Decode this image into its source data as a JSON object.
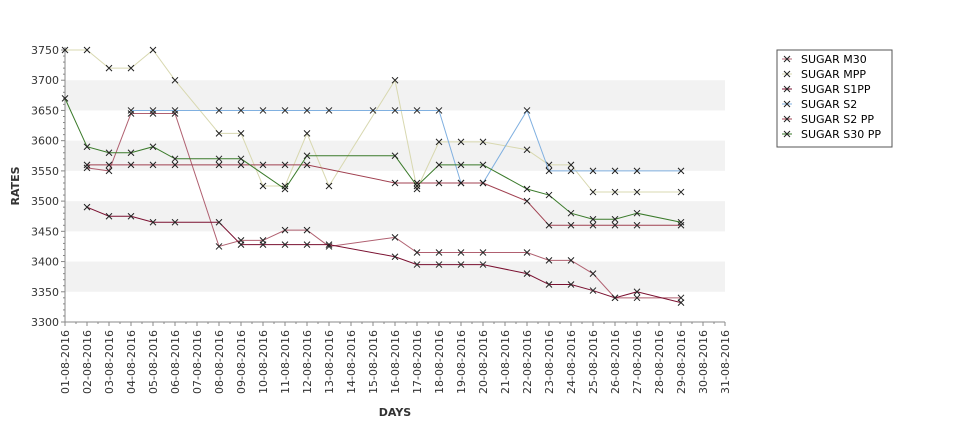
{
  "chart_data": {
    "type": "line",
    "title": "",
    "xlabel": "DAYS",
    "ylabel": "RATES",
    "ylim": [
      3300,
      3750
    ],
    "yticks": [
      3300,
      3350,
      3400,
      3450,
      3500,
      3550,
      3600,
      3650,
      3700,
      3750
    ],
    "categories": [
      "01-08-2016",
      "02-08-2016",
      "03-08-2016",
      "04-08-2016",
      "05-08-2016",
      "06-08-2016",
      "07-08-2016",
      "08-08-2016",
      "09-08-2016",
      "10-08-2016",
      "11-08-2016",
      "12-08-2016",
      "13-08-2016",
      "14-08-2016",
      "15-08-2016",
      "16-08-2016",
      "17-08-2016",
      "18-08-2016",
      "19-08-2016",
      "20-08-2016",
      "21-08-2016",
      "22-08-2016",
      "23-08-2016",
      "24-08-2016",
      "25-08-2016",
      "26-08-2016",
      "27-08-2016",
      "28-08-2016",
      "29-08-2016",
      "30-08-2016",
      "31-08-2016"
    ],
    "grid": "alternating horizontal bands",
    "legend_position": "right",
    "series": [
      {
        "name": "SUGAR M30",
        "color": "#b06070",
        "points": [
          [
            "02-08-2016",
            3555
          ],
          [
            "03-08-2016",
            3550
          ],
          [
            "04-08-2016",
            3645
          ],
          [
            "05-08-2016",
            3645
          ],
          [
            "06-08-2016",
            3645
          ],
          [
            "08-08-2016",
            3425
          ],
          [
            "09-08-2016",
            3435
          ],
          [
            "10-08-2016",
            3435
          ],
          [
            "11-08-2016",
            3452
          ],
          [
            "12-08-2016",
            3452
          ],
          [
            "13-08-2016",
            3425
          ],
          [
            "16-08-2016",
            3440
          ],
          [
            "17-08-2016",
            3415
          ],
          [
            "18-08-2016",
            3415
          ],
          [
            "19-08-2016",
            3415
          ],
          [
            "20-08-2016",
            3415
          ],
          [
            "22-08-2016",
            3415
          ],
          [
            "23-08-2016",
            3402
          ],
          [
            "24-08-2016",
            3402
          ],
          [
            "25-08-2016",
            3380
          ],
          [
            "26-08-2016",
            3340
          ],
          [
            "27-08-2016",
            3340
          ],
          [
            "29-08-2016",
            3340
          ]
        ]
      },
      {
        "name": "SUGAR MPP",
        "color": "#d8d8b0",
        "points": [
          [
            "01-08-2016",
            3750
          ],
          [
            "02-08-2016",
            3750
          ],
          [
            "03-08-2016",
            3720
          ],
          [
            "04-08-2016",
            3720
          ],
          [
            "05-08-2016",
            3750
          ],
          [
            "06-08-2016",
            3700
          ],
          [
            "08-08-2016",
            3612
          ],
          [
            "09-08-2016",
            3612
          ],
          [
            "10-08-2016",
            3525
          ],
          [
            "11-08-2016",
            3525
          ],
          [
            "12-08-2016",
            3612
          ],
          [
            "13-08-2016",
            3525
          ],
          [
            "16-08-2016",
            3700
          ],
          [
            "17-08-2016",
            3520
          ],
          [
            "18-08-2016",
            3598
          ],
          [
            "19-08-2016",
            3598
          ],
          [
            "20-08-2016",
            3598
          ],
          [
            "22-08-2016",
            3585
          ],
          [
            "23-08-2016",
            3560
          ],
          [
            "24-08-2016",
            3560
          ],
          [
            "25-08-2016",
            3515
          ],
          [
            "26-08-2016",
            3515
          ],
          [
            "27-08-2016",
            3515
          ],
          [
            "29-08-2016",
            3515
          ]
        ]
      },
      {
        "name": "SUGAR S1PP",
        "color": "#7a1030",
        "points": [
          [
            "02-08-2016",
            3490
          ],
          [
            "03-08-2016",
            3475
          ],
          [
            "04-08-2016",
            3475
          ],
          [
            "05-08-2016",
            3465
          ],
          [
            "06-08-2016",
            3465
          ],
          [
            "08-08-2016",
            3465
          ],
          [
            "09-08-2016",
            3428
          ],
          [
            "10-08-2016",
            3428
          ],
          [
            "11-08-2016",
            3428
          ],
          [
            "12-08-2016",
            3428
          ],
          [
            "13-08-2016",
            3428
          ],
          [
            "16-08-2016",
            3408
          ],
          [
            "17-08-2016",
            3395
          ],
          [
            "18-08-2016",
            3395
          ],
          [
            "19-08-2016",
            3395
          ],
          [
            "20-08-2016",
            3395
          ],
          [
            "22-08-2016",
            3380
          ],
          [
            "23-08-2016",
            3362
          ],
          [
            "24-08-2016",
            3362
          ],
          [
            "25-08-2016",
            3352
          ],
          [
            "26-08-2016",
            3340
          ],
          [
            "27-08-2016",
            3350
          ],
          [
            "29-08-2016",
            3332
          ]
        ]
      },
      {
        "name": "SUGAR S2",
        "color": "#80b0e0",
        "points": [
          [
            "04-08-2016",
            3650
          ],
          [
            "05-08-2016",
            3650
          ],
          [
            "06-08-2016",
            3650
          ],
          [
            "08-08-2016",
            3650
          ],
          [
            "09-08-2016",
            3650
          ],
          [
            "10-08-2016",
            3650
          ],
          [
            "11-08-2016",
            3650
          ],
          [
            "12-08-2016",
            3650
          ],
          [
            "13-08-2016",
            3650
          ],
          [
            "15-08-2016",
            3650
          ],
          [
            "16-08-2016",
            3650
          ],
          [
            "17-08-2016",
            3650
          ],
          [
            "18-08-2016",
            3650
          ],
          [
            "19-08-2016",
            3530
          ],
          [
            "20-08-2016",
            3530
          ],
          [
            "22-08-2016",
            3650
          ],
          [
            "23-08-2016",
            3550
          ],
          [
            "24-08-2016",
            3550
          ],
          [
            "25-08-2016",
            3550
          ],
          [
            "26-08-2016",
            3550
          ],
          [
            "27-08-2016",
            3550
          ],
          [
            "29-08-2016",
            3550
          ]
        ]
      },
      {
        "name": "SUGAR S2 PP",
        "color": "#a04050",
        "points": [
          [
            "02-08-2016",
            3560
          ],
          [
            "03-08-2016",
            3560
          ],
          [
            "04-08-2016",
            3560
          ],
          [
            "05-08-2016",
            3560
          ],
          [
            "06-08-2016",
            3560
          ],
          [
            "08-08-2016",
            3560
          ],
          [
            "09-08-2016",
            3560
          ],
          [
            "10-08-2016",
            3560
          ],
          [
            "11-08-2016",
            3560
          ],
          [
            "12-08-2016",
            3560
          ],
          [
            "16-08-2016",
            3530
          ],
          [
            "17-08-2016",
            3530
          ],
          [
            "18-08-2016",
            3530
          ],
          [
            "19-08-2016",
            3530
          ],
          [
            "20-08-2016",
            3530
          ],
          [
            "22-08-2016",
            3500
          ],
          [
            "23-08-2016",
            3460
          ],
          [
            "24-08-2016",
            3460
          ],
          [
            "25-08-2016",
            3460
          ],
          [
            "26-08-2016",
            3460
          ],
          [
            "27-08-2016",
            3460
          ],
          [
            "29-08-2016",
            3460
          ]
        ]
      },
      {
        "name": "SUGAR S30 PP",
        "color": "#3a7a2a",
        "points": [
          [
            "01-08-2016",
            3670
          ],
          [
            "02-08-2016",
            3590
          ],
          [
            "03-08-2016",
            3580
          ],
          [
            "04-08-2016",
            3580
          ],
          [
            "05-08-2016",
            3590
          ],
          [
            "06-08-2016",
            3570
          ],
          [
            "08-08-2016",
            3570
          ],
          [
            "09-08-2016",
            3570
          ],
          [
            "11-08-2016",
            3520
          ],
          [
            "12-08-2016",
            3575
          ],
          [
            "16-08-2016",
            3575
          ],
          [
            "17-08-2016",
            3525
          ],
          [
            "18-08-2016",
            3560
          ],
          [
            "19-08-2016",
            3560
          ],
          [
            "20-08-2016",
            3560
          ],
          [
            "22-08-2016",
            3520
          ],
          [
            "23-08-2016",
            3510
          ],
          [
            "24-08-2016",
            3480
          ],
          [
            "25-08-2016",
            3470
          ],
          [
            "26-08-2016",
            3470
          ],
          [
            "27-08-2016",
            3480
          ],
          [
            "29-08-2016",
            3465
          ]
        ]
      }
    ]
  }
}
